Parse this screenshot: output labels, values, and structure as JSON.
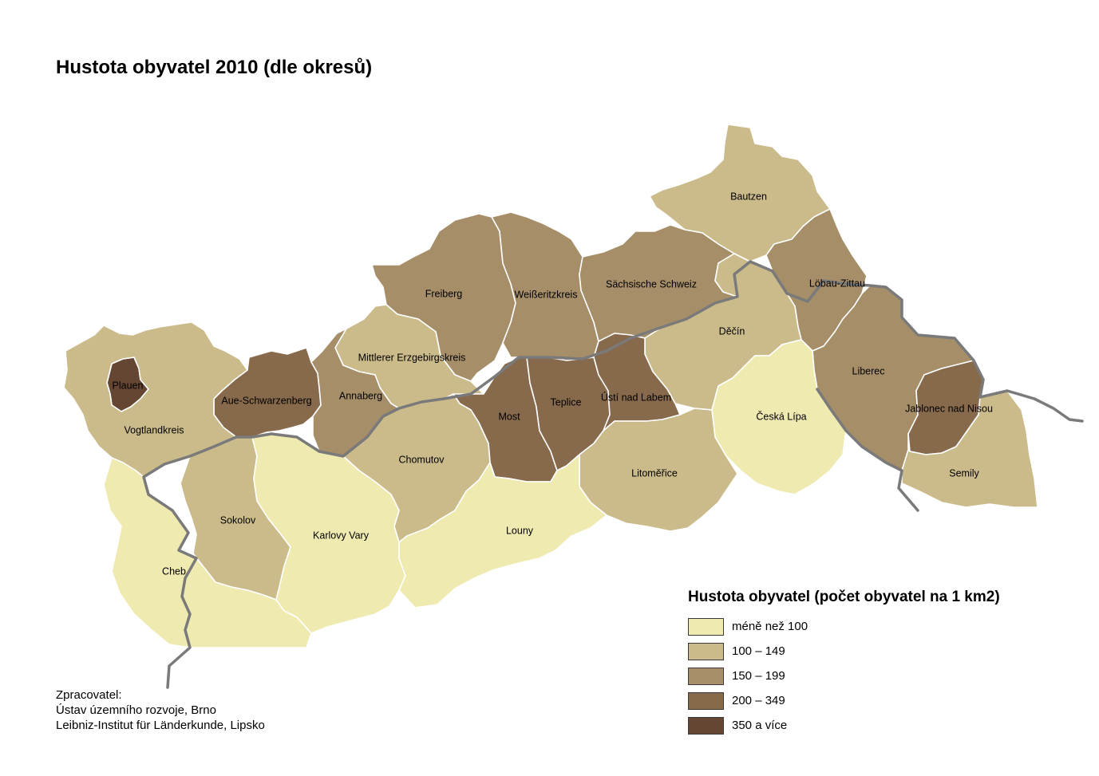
{
  "title": "Hustota obyvatel 2010 (dle okresů)",
  "legend": {
    "title": "Hustota obyvatel (počet obyvatel na 1 km2)",
    "classes": [
      {
        "label": "méně než 100",
        "color": "#efeab0"
      },
      {
        "label": "100 – 149",
        "color": "#cbbb8b"
      },
      {
        "label": "150 – 199",
        "color": "#a58e68"
      },
      {
        "label": "200 – 349",
        "color": "#87694b"
      },
      {
        "label": "350 a více",
        "color": "#654633"
      }
    ]
  },
  "districts": [
    {
      "name": "Bautzen",
      "class": 1
    },
    {
      "name": "Löbau-Zittau",
      "class": 2
    },
    {
      "name": "Freiberg",
      "class": 2
    },
    {
      "name": "Weißeritzkreis",
      "class": 2
    },
    {
      "name": "Sächsische Schweiz",
      "class": 2
    },
    {
      "name": "Děčín",
      "class": 1
    },
    {
      "name": "Mittlerer Erzgebirgskreis",
      "class": 1
    },
    {
      "name": "Plauen",
      "class": 4
    },
    {
      "name": "Aue-Schwarzenberg",
      "class": 3
    },
    {
      "name": "Annaberg",
      "class": 2
    },
    {
      "name": "Vogtlandkreis",
      "class": 1
    },
    {
      "name": "Most",
      "class": 3
    },
    {
      "name": "Teplice",
      "class": 3
    },
    {
      "name": "Ústí nad Labem",
      "class": 3
    },
    {
      "name": "Liberec",
      "class": 2
    },
    {
      "name": "Jablonec nad Nisou",
      "class": 3
    },
    {
      "name": "Česká Lípa",
      "class": 0
    },
    {
      "name": "Chomutov",
      "class": 1
    },
    {
      "name": "Litoměřice",
      "class": 1
    },
    {
      "name": "Semily",
      "class": 1
    },
    {
      "name": "Sokolov",
      "class": 1
    },
    {
      "name": "Karlovy Vary",
      "class": 0
    },
    {
      "name": "Louny",
      "class": 0
    },
    {
      "name": "Cheb",
      "class": 0
    }
  ],
  "credits": {
    "line1": "Zpracovatel:",
    "line2": "Ústav územního rozvoje, Brno",
    "line3": "Leibniz-Institut für Länderkunde, Lipsko"
  }
}
